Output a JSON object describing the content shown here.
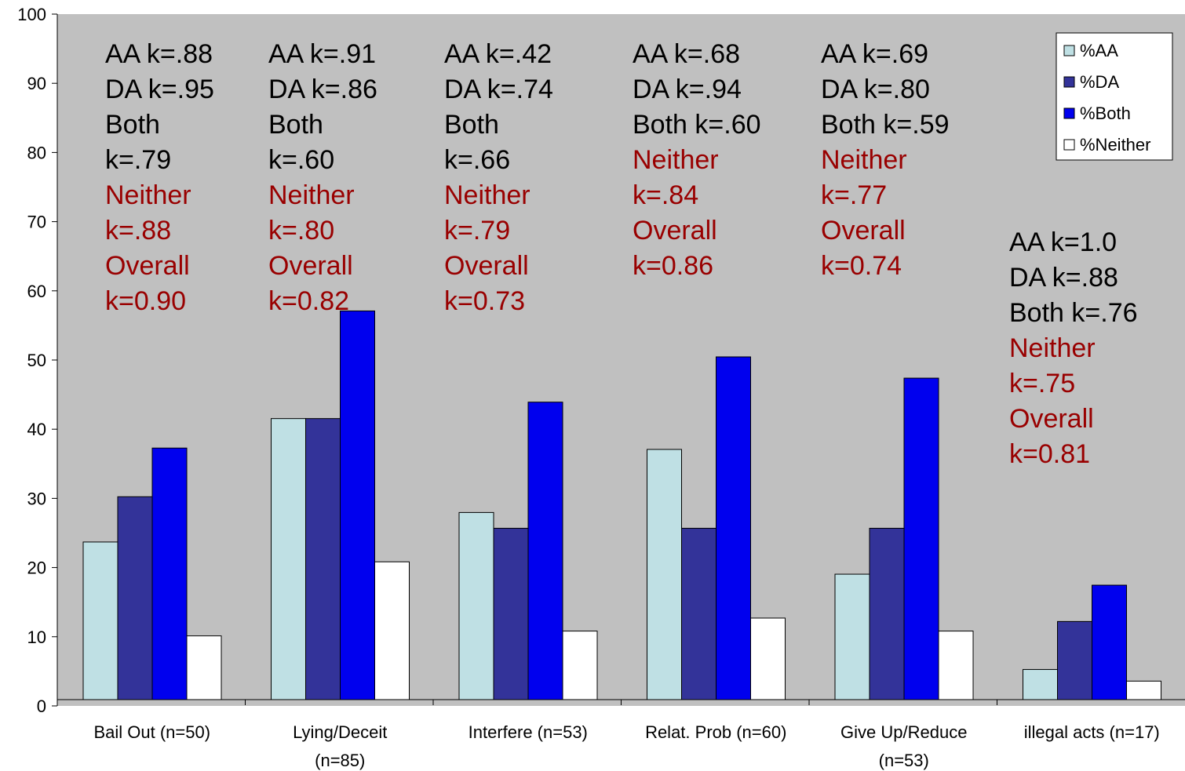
{
  "chart_data": {
    "type": "bar",
    "title": "",
    "xlabel": "",
    "ylabel": "",
    "ylim": [
      0,
      100
    ],
    "yticks": [
      "0",
      "10",
      "20",
      "30",
      "40",
      "50",
      "60",
      "70",
      "80",
      "90",
      "100"
    ],
    "categories": [
      [
        "Bail Out (n=50)"
      ],
      [
        "Lying/Deceit",
        "(n=85)"
      ],
      [
        "Interfere (n=53)"
      ],
      [
        "Relat. Prob (n=60)"
      ],
      [
        "Give Up/Reduce",
        "(n=53)"
      ],
      [
        "illegal acts (n=17)"
      ]
    ],
    "series": [
      {
        "name": "%AA",
        "color": "#bfe0e4",
        "values": [
          23,
          41,
          27.3,
          36.5,
          18.3,
          4.4
        ]
      },
      {
        "name": "%DA",
        "color": "#333399",
        "values": [
          29.6,
          41,
          25,
          25,
          25,
          11.4
        ]
      },
      {
        "name": "%Both",
        "color": "#0000ee",
        "values": [
          36.7,
          56.7,
          43.4,
          50,
          46.9,
          16.7
        ]
      },
      {
        "name": "%Neither",
        "color": "#ffffff",
        "values": [
          9.3,
          20.1,
          10,
          11.9,
          10,
          2.7
        ]
      }
    ],
    "legend_position": "top-right",
    "annotation_colors": {
      "black": "#000000",
      "red": "#990000"
    },
    "annotations": [
      {
        "lines": [
          [
            "AA k=.88",
            "black"
          ],
          [
            "DA  k=.95",
            "black"
          ],
          [
            "Both",
            "black"
          ],
          [
            "k=.79",
            "black"
          ],
          [
            "Neither",
            "red"
          ],
          [
            "k=.88",
            "red"
          ],
          [
            "Overall",
            "red"
          ],
          [
            "k=0.90",
            "red"
          ]
        ]
      },
      {
        "lines": [
          [
            "AA k=.91",
            "black"
          ],
          [
            "DA  k=.86",
            "black"
          ],
          [
            "Both",
            "black"
          ],
          [
            "k=.60",
            "black"
          ],
          [
            "Neither",
            "red"
          ],
          [
            "k=.80",
            "red"
          ],
          [
            "Overall",
            "red"
          ],
          [
            "k=0.82",
            "red"
          ]
        ]
      },
      {
        "lines": [
          [
            "AA k=.42",
            "black"
          ],
          [
            "DA  k=.74",
            "black"
          ],
          [
            "Both",
            "black"
          ],
          [
            "k=.66",
            "black"
          ],
          [
            "Neither",
            "red"
          ],
          [
            "k=.79",
            "red"
          ],
          [
            "Overall",
            "red"
          ],
          [
            "k=0.73",
            "red"
          ]
        ]
      },
      {
        "lines": [
          [
            "AA k=.68",
            "black"
          ],
          [
            "DA  k=.94",
            "black"
          ],
          [
            "Both k=.60",
            "black"
          ],
          [
            "Neither",
            "red"
          ],
          [
            "k=.84",
            "red"
          ],
          [
            "Overall",
            "red"
          ],
          [
            "k=0.86",
            "red"
          ]
        ]
      },
      {
        "lines": [
          [
            "AA k=.69",
            "black"
          ],
          [
            "DA  k=.80",
            "black"
          ],
          [
            "Both k=.59",
            "black"
          ],
          [
            "Neither",
            "red"
          ],
          [
            "k=.77",
            "red"
          ],
          [
            "Overall",
            "red"
          ],
          [
            "k=0.74",
            "red"
          ]
        ]
      },
      {
        "lines": [
          [
            "AA k=1.0",
            "black"
          ],
          [
            "DA  k=.88",
            "black"
          ],
          [
            "Both k=.76",
            "black"
          ],
          [
            "Neither",
            "red"
          ],
          [
            "k=.75",
            "red"
          ],
          [
            "Overall",
            "red"
          ],
          [
            "k=0.81",
            "red"
          ]
        ]
      }
    ],
    "plot_background": "#c0c0c0",
    "grid": false
  }
}
